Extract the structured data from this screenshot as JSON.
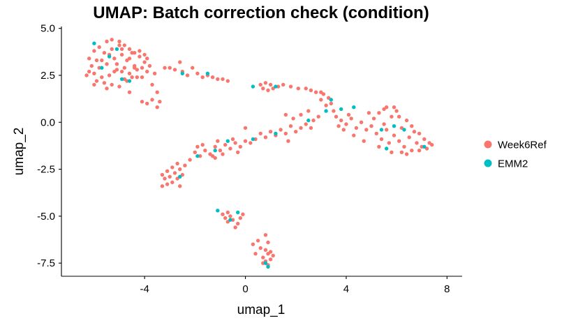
{
  "chart_data": {
    "type": "scatter",
    "title": "UMAP: Batch correction check (condition)",
    "xlabel": "umap_1",
    "ylabel": "umap_2",
    "xlim": [
      -7.3,
      8.6
    ],
    "ylim": [
      -8.2,
      5.1
    ],
    "x_ticks": [
      -4,
      0,
      4,
      8
    ],
    "x_tick_labels": [
      "-4",
      "0",
      "4",
      "8"
    ],
    "y_ticks": [
      5.0,
      2.5,
      0.0,
      -2.5,
      -5.0,
      -7.5
    ],
    "y_tick_labels": [
      "5.0",
      "2.5",
      "0.0",
      "-2.5",
      "-5.0",
      "-7.5"
    ],
    "grid": false,
    "legend_position": "right",
    "series": [
      {
        "name": "Week6Ref",
        "color": "#F8766D",
        "points": [
          [
            -6.2,
            2.7
          ],
          [
            -6.1,
            3.0
          ],
          [
            -6.0,
            2.6
          ],
          [
            -5.9,
            3.3
          ],
          [
            -5.8,
            2.9
          ],
          [
            -5.7,
            2.4
          ],
          [
            -5.6,
            3.7
          ],
          [
            -5.5,
            3.1
          ],
          [
            -5.4,
            2.5
          ],
          [
            -5.3,
            3.9
          ],
          [
            -5.2,
            3.4
          ],
          [
            -5.1,
            2.8
          ],
          [
            -5.0,
            4.1
          ],
          [
            -4.9,
            3.6
          ],
          [
            -4.8,
            2.9
          ],
          [
            -4.7,
            3.3
          ],
          [
            -4.6,
            2.6
          ],
          [
            -4.5,
            3.7
          ],
          [
            -4.4,
            3.0
          ],
          [
            -4.3,
            2.4
          ],
          [
            -4.2,
            3.5
          ],
          [
            -4.1,
            2.9
          ],
          [
            -4.0,
            3.2
          ],
          [
            -3.9,
            2.7
          ],
          [
            -3.8,
            3.0
          ],
          [
            -6.0,
            3.8
          ],
          [
            -5.8,
            4.0
          ],
          [
            -5.5,
            4.3
          ],
          [
            -5.3,
            4.4
          ],
          [
            -5.0,
            4.3
          ],
          [
            -4.8,
            4.1
          ],
          [
            -4.6,
            3.9
          ],
          [
            -4.4,
            3.7
          ],
          [
            -4.2,
            3.8
          ],
          [
            -4.0,
            3.6
          ],
          [
            -3.9,
            3.4
          ],
          [
            -5.7,
            3.3
          ],
          [
            -5.4,
            3.6
          ],
          [
            -5.1,
            3.1
          ],
          [
            -4.9,
            2.7
          ],
          [
            -4.7,
            2.2
          ],
          [
            -4.5,
            2.4
          ],
          [
            -4.3,
            2.8
          ],
          [
            -5.6,
            2.1
          ],
          [
            -5.3,
            2.0
          ],
          [
            -5.0,
            1.9
          ],
          [
            -4.8,
            2.3
          ],
          [
            -6.3,
            2.5
          ],
          [
            -6.2,
            3.4
          ],
          [
            -5.9,
            2.2
          ],
          [
            -5.2,
            2.7
          ],
          [
            -4.9,
            3.9
          ],
          [
            -4.6,
            3.4
          ],
          [
            -4.4,
            2.9
          ],
          [
            -4.1,
            2.4
          ],
          [
            -3.7,
            2.0
          ],
          [
            -3.6,
            2.6
          ],
          [
            -3.5,
            1.6
          ],
          [
            -3.4,
            1.1
          ],
          [
            -3.5,
            0.8
          ],
          [
            -3.7,
            1.2
          ],
          [
            -3.9,
            1.0
          ],
          [
            -4.1,
            1.1
          ],
          [
            -3.2,
            2.9
          ],
          [
            -3.0,
            2.9
          ],
          [
            -2.8,
            2.8
          ],
          [
            -2.6,
            3.2
          ],
          [
            -2.5,
            2.7
          ],
          [
            -2.3,
            2.5
          ],
          [
            -2.1,
            2.9
          ],
          [
            -1.9,
            2.6
          ],
          [
            -1.7,
            2.4
          ],
          [
            -1.5,
            2.5
          ],
          [
            -1.3,
            2.4
          ],
          [
            -1.1,
            2.3
          ],
          [
            -0.9,
            2.3
          ],
          [
            -0.7,
            2.2
          ],
          [
            -5.5,
            1.8
          ],
          [
            -6.0,
            2.0
          ],
          [
            -4.6,
            1.6
          ],
          [
            0.6,
            2.0
          ],
          [
            0.7,
            1.8
          ],
          [
            0.8,
            2.1
          ],
          [
            0.9,
            1.7
          ],
          [
            1.0,
            2.0
          ],
          [
            1.1,
            1.8
          ],
          [
            1.3,
            1.9
          ],
          [
            1.5,
            2.0
          ],
          [
            1.8,
            1.9
          ],
          [
            2.1,
            1.8
          ],
          [
            2.4,
            1.8
          ],
          [
            2.6,
            1.7
          ],
          [
            2.8,
            1.6
          ],
          [
            3.0,
            1.6
          ],
          [
            3.1,
            1.5
          ],
          [
            3.3,
            1.3
          ],
          [
            3.4,
            1.0
          ],
          [
            3.2,
            0.9
          ],
          [
            3.0,
            1.2
          ],
          [
            3.5,
            0.6
          ],
          [
            3.6,
            0.3
          ],
          [
            3.8,
            0.1
          ],
          [
            4.0,
            -0.1
          ],
          [
            4.2,
            0.2
          ],
          [
            4.4,
            -0.3
          ],
          [
            4.6,
            0.0
          ],
          [
            4.8,
            -0.4
          ],
          [
            5.0,
            -0.2
          ],
          [
            5.2,
            -0.6
          ],
          [
            5.3,
            0.5
          ],
          [
            5.4,
            -0.9
          ],
          [
            5.5,
            0.7
          ],
          [
            5.6,
            -0.4
          ],
          [
            5.7,
            -1.1
          ],
          [
            5.8,
            0.3
          ],
          [
            5.9,
            -0.7
          ],
          [
            6.0,
            0.6
          ],
          [
            6.1,
            -1.0
          ],
          [
            6.2,
            -0.3
          ],
          [
            6.3,
            -1.3
          ],
          [
            6.4,
            0.1
          ],
          [
            6.5,
            -0.8
          ],
          [
            6.6,
            -1.5
          ],
          [
            6.7,
            -0.5
          ],
          [
            6.8,
            -1.1
          ],
          [
            6.9,
            -0.6
          ],
          [
            7.0,
            -1.3
          ],
          [
            7.1,
            -0.9
          ],
          [
            7.2,
            -1.4
          ],
          [
            7.3,
            -1.1
          ],
          [
            5.1,
            0.2
          ],
          [
            5.3,
            -1.3
          ],
          [
            5.5,
            -0.1
          ],
          [
            5.8,
            -1.6
          ],
          [
            6.1,
            0.3
          ],
          [
            6.4,
            -1.7
          ],
          [
            4.3,
            -0.7
          ],
          [
            4.7,
            -1.0
          ],
          [
            4.9,
            0.5
          ],
          [
            5.6,
            0.8
          ],
          [
            3.9,
            -0.4
          ],
          [
            4.1,
            0.4
          ],
          [
            3.7,
            -0.2
          ],
          [
            2.9,
            0.3
          ],
          [
            2.7,
            0.1
          ],
          [
            5.9,
            0.8
          ],
          [
            6.2,
            -1.6
          ],
          [
            6.6,
            -0.2
          ],
          [
            6.9,
            -1.5
          ],
          [
            7.4,
            -1.2
          ],
          [
            2.4,
            -0.1
          ],
          [
            2.2,
            -0.3
          ],
          [
            2.0,
            -0.5
          ],
          [
            1.8,
            -0.2
          ],
          [
            1.6,
            -0.6
          ],
          [
            1.4,
            -0.4
          ],
          [
            1.2,
            -0.7
          ],
          [
            1.0,
            -0.5
          ],
          [
            0.8,
            -0.8
          ],
          [
            0.6,
            -0.6
          ],
          [
            0.4,
            -0.9
          ],
          [
            0.2,
            -1.1
          ],
          [
            0.0,
            -1.0
          ],
          [
            -0.2,
            -1.3
          ],
          [
            -0.4,
            -1.1
          ],
          [
            -0.6,
            -1.4
          ],
          [
            -0.8,
            -1.2
          ],
          [
            -1.0,
            -1.5
          ],
          [
            -1.2,
            -1.3
          ],
          [
            -1.4,
            -1.7
          ],
          [
            -1.6,
            -1.5
          ],
          [
            -1.8,
            -1.8
          ],
          [
            -2.0,
            -1.6
          ],
          [
            -2.2,
            -2.0
          ],
          [
            -1.7,
            -1.2
          ],
          [
            -1.3,
            -1.8
          ],
          [
            -0.9,
            -1.7
          ],
          [
            -0.5,
            -0.9
          ],
          [
            -1.1,
            -1.0
          ],
          [
            -1.9,
            -1.3
          ],
          [
            -2.4,
            -2.3
          ],
          [
            -2.5,
            -2.8
          ],
          [
            -2.6,
            -2.5
          ],
          [
            -2.7,
            -3.0
          ],
          [
            -2.8,
            -2.7
          ],
          [
            -2.9,
            -3.2
          ],
          [
            -3.0,
            -2.9
          ],
          [
            -3.1,
            -3.3
          ],
          [
            -3.2,
            -3.0
          ],
          [
            -3.3,
            -3.4
          ],
          [
            -3.1,
            -2.6
          ],
          [
            -2.9,
            -2.4
          ],
          [
            -2.7,
            -2.2
          ],
          [
            -2.6,
            -3.4
          ],
          [
            -3.3,
            -2.8
          ],
          [
            -0.9,
            -4.9
          ],
          [
            -0.8,
            -5.1
          ],
          [
            -0.7,
            -5.3
          ],
          [
            -0.6,
            -5.0
          ],
          [
            -0.5,
            -5.2
          ],
          [
            -0.3,
            -5.4
          ],
          [
            -0.7,
            -4.8
          ],
          [
            -0.4,
            -5.6
          ],
          [
            -0.2,
            -5.1
          ],
          [
            -0.1,
            -4.9
          ],
          [
            0.8,
            -6.0
          ],
          [
            0.9,
            -6.4
          ],
          [
            0.8,
            -6.8
          ],
          [
            0.9,
            -7.0
          ],
          [
            0.7,
            -7.2
          ],
          [
            0.8,
            -7.4
          ],
          [
            1.0,
            -7.3
          ],
          [
            0.9,
            -7.6
          ],
          [
            0.7,
            -7.5
          ],
          [
            1.0,
            -6.9
          ],
          [
            0.6,
            -6.7
          ],
          [
            0.5,
            -6.3
          ],
          [
            0.4,
            -7.0
          ],
          [
            1.1,
            -7.1
          ],
          [
            0.3,
            -6.5
          ],
          [
            1.6,
            0.4
          ],
          [
            1.9,
            0.2
          ],
          [
            2.2,
            0.4
          ],
          [
            2.5,
            0.6
          ],
          [
            0.0,
            -0.3
          ],
          [
            -1.2,
            -1.9
          ],
          [
            -0.3,
            -1.6
          ],
          [
            1.7,
            -1.0
          ],
          [
            2.6,
            -0.3
          ]
        ]
      },
      {
        "name": "EMM2",
        "color": "#00BFC4",
        "points": [
          [
            -6.0,
            4.2
          ],
          [
            -5.7,
            2.9
          ],
          [
            -5.4,
            3.5
          ],
          [
            -5.1,
            3.9
          ],
          [
            -4.9,
            2.3
          ],
          [
            -4.6,
            2.2
          ],
          [
            -2.5,
            2.6
          ],
          [
            -1.5,
            2.6
          ],
          [
            0.3,
            1.9
          ],
          [
            1.2,
            1.9
          ],
          [
            3.4,
            1.2
          ],
          [
            3.2,
            0.6
          ],
          [
            3.8,
            0.7
          ],
          [
            4.3,
            0.8
          ],
          [
            5.4,
            -0.4
          ],
          [
            5.9,
            -0.2
          ],
          [
            6.3,
            -0.4
          ],
          [
            5.6,
            -1.4
          ],
          [
            7.1,
            -1.3
          ],
          [
            2.5,
            0.1
          ],
          [
            1.2,
            -0.6
          ],
          [
            0.3,
            -0.9
          ],
          [
            -0.7,
            -1.0
          ],
          [
            -1.2,
            -1.5
          ],
          [
            -1.9,
            -1.8
          ],
          [
            -2.6,
            -2.9
          ],
          [
            -1.1,
            -4.7
          ],
          [
            -0.6,
            -5.2
          ],
          [
            -0.3,
            -4.8
          ],
          [
            0.8,
            -7.5
          ],
          [
            0.9,
            -7.7
          ]
        ]
      }
    ]
  }
}
